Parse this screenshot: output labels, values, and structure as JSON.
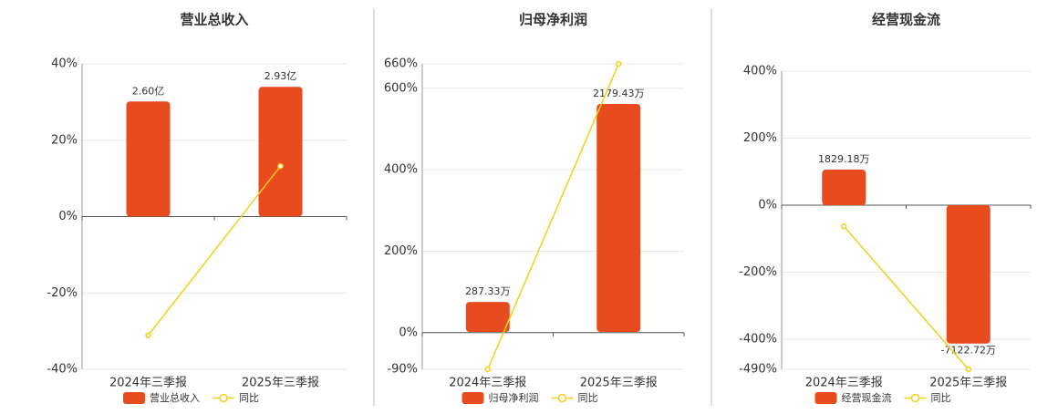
{
  "chart_data": [
    {
      "type": "combo",
      "title": "营业总收入",
      "categories": [
        "2024年三季报",
        "2025年三季报"
      ],
      "series": [
        {
          "name": "营业总收入",
          "type": "bar",
          "axis": "y2",
          "color": "#e84c1e",
          "values": [
            2.6,
            2.93
          ],
          "value_labels": [
            "2.60亿",
            "2.93亿"
          ]
        },
        {
          "name": "同比",
          "type": "line",
          "color": "#f2d01c",
          "values": [
            -31.1,
            13.2
          ]
        }
      ],
      "ylim": [
        -40,
        40
      ],
      "yticks": [
        {
          "value": -40,
          "label": "-40%"
        },
        {
          "value": -20,
          "label": "-20%"
        },
        {
          "value": 0,
          "label": "0%"
        },
        {
          "value": 20,
          "label": "20%"
        },
        {
          "value": 40,
          "label": "40%"
        }
      ],
      "y2lim": [
        -3.45,
        3.45
      ],
      "grid": true
    },
    {
      "type": "combo",
      "title": "归母净利润",
      "categories": [
        "2024年三季报",
        "2025年三季报"
      ],
      "series": [
        {
          "name": "归母净利润",
          "type": "bar",
          "axis": "y2",
          "color": "#e84c1e",
          "values": [
            287.33,
            2179.43
          ],
          "value_labels": [
            "287.33万",
            "2179.43万"
          ]
        },
        {
          "name": "同比",
          "type": "line",
          "color": "#f2d01c",
          "values": [
            -90,
            660
          ]
        }
      ],
      "ylim": [
        -90,
        660
      ],
      "yticks": [
        {
          "value": -90,
          "label": "-90%"
        },
        {
          "value": 0,
          "label": "0%"
        },
        {
          "value": 200,
          "label": "200%"
        },
        {
          "value": 400,
          "label": "400%"
        },
        {
          "value": 600,
          "label": "600%"
        },
        {
          "value": 660,
          "label": "660%"
        }
      ],
      "y2lim": [
        -357,
        2563
      ],
      "grid": true
    },
    {
      "type": "combo",
      "title": "经营现金流",
      "categories": [
        "2024年三季报",
        "2025年三季报"
      ],
      "series": [
        {
          "name": "经营现金流",
          "type": "bar",
          "axis": "y2",
          "color": "#e84c1e",
          "values": [
            1829.18,
            -7122.72
          ],
          "value_labels": [
            "1829.18万",
            "-7122.72万"
          ]
        },
        {
          "name": "同比",
          "type": "line",
          "color": "#f2d01c",
          "values": [
            -63,
            -490
          ]
        }
      ],
      "ylim": [
        -490,
        400
      ],
      "yticks": [
        {
          "value": -490,
          "label": "-490%"
        },
        {
          "value": -400,
          "label": "-400%"
        },
        {
          "value": -200,
          "label": "-200%"
        },
        {
          "value": 0,
          "label": "0%"
        },
        {
          "value": 200,
          "label": "200%"
        },
        {
          "value": 400,
          "label": "400%"
        }
      ],
      "y2lim": [
        -8450,
        6900
      ],
      "grid": true
    }
  ]
}
